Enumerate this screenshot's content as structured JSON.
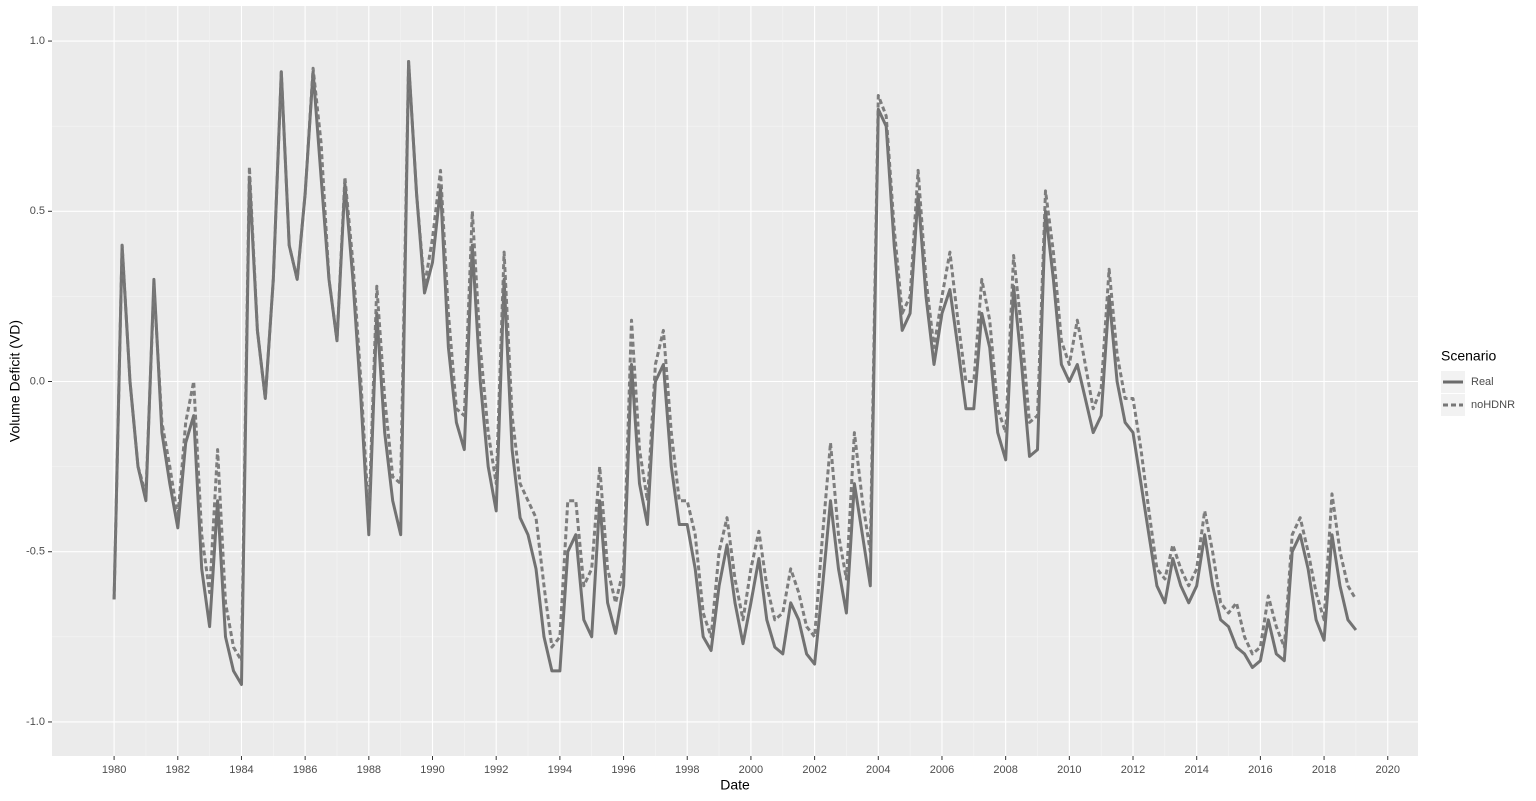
{
  "chart_data": {
    "type": "line",
    "x_label": "Date",
    "y_label": "Volume Deficit (VD)",
    "legend_title": "Scenario",
    "x": [
      1980,
      1980.25,
      1980.5,
      1980.75,
      1981,
      1981.25,
      1981.5,
      1981.75,
      1982,
      1982.25,
      1982.5,
      1982.75,
      1983,
      1983.25,
      1983.5,
      1983.75,
      1984,
      1984.25,
      1984.5,
      1984.75,
      1985,
      1985.25,
      1985.5,
      1985.75,
      1986,
      1986.25,
      1986.5,
      1986.75,
      1987,
      1987.25,
      1987.5,
      1987.75,
      1988,
      1988.25,
      1988.5,
      1988.75,
      1989,
      1989.25,
      1989.5,
      1989.75,
      1990,
      1990.25,
      1990.5,
      1990.75,
      1991,
      1991.25,
      1991.5,
      1991.75,
      1992,
      1992.25,
      1992.5,
      1992.75,
      1993,
      1993.25,
      1993.5,
      1993.75,
      1994,
      1994.25,
      1994.5,
      1994.75,
      1995,
      1995.25,
      1995.5,
      1995.75,
      1996,
      1996.25,
      1996.5,
      1996.75,
      1997,
      1997.25,
      1997.5,
      1997.75,
      1998,
      1998.25,
      1998.5,
      1998.75,
      1999,
      1999.25,
      1999.5,
      1999.75,
      2000,
      2000.25,
      2000.5,
      2000.75,
      2001,
      2001.25,
      2001.5,
      2001.75,
      2002,
      2002.25,
      2002.5,
      2002.75,
      2003,
      2003.25,
      2003.5,
      2003.75,
      2004,
      2004.25,
      2004.5,
      2004.75,
      2005,
      2005.25,
      2005.5,
      2005.75,
      2006,
      2006.25,
      2006.5,
      2006.75,
      2007,
      2007.25,
      2007.5,
      2007.75,
      2008,
      2008.25,
      2008.5,
      2008.75,
      2009,
      2009.25,
      2009.5,
      2009.75,
      2010,
      2010.25,
      2010.5,
      2010.75,
      2011,
      2011.25,
      2011.5,
      2011.75,
      2012,
      2012.25,
      2012.5,
      2012.75,
      2013,
      2013.25,
      2013.5,
      2013.75,
      2014,
      2014.25,
      2014.5,
      2014.75,
      2015,
      2015.25,
      2015.5,
      2015.75,
      2016,
      2016.25,
      2016.5,
      2016.75,
      2017,
      2017.25,
      2017.5,
      2017.75,
      2018,
      2018.25,
      2018.5,
      2018.75,
      2019
    ],
    "series": [
      {
        "name": "Real",
        "color": "#6b6b6b",
        "linetype": "solid",
        "values": [
          -0.64,
          0.4,
          0.0,
          -0.25,
          -0.35,
          0.3,
          -0.15,
          -0.3,
          -0.43,
          -0.18,
          -0.1,
          -0.55,
          -0.72,
          -0.35,
          -0.75,
          -0.85,
          -0.89,
          0.6,
          0.15,
          -0.05,
          0.3,
          0.91,
          0.4,
          0.3,
          0.55,
          0.91,
          0.6,
          0.3,
          0.12,
          0.58,
          0.3,
          -0.05,
          -0.45,
          0.2,
          -0.15,
          -0.35,
          -0.45,
          0.94,
          0.55,
          0.26,
          0.35,
          0.57,
          0.1,
          -0.12,
          -0.2,
          0.4,
          0.0,
          -0.25,
          -0.38,
          0.3,
          -0.2,
          -0.4,
          -0.45,
          -0.55,
          -0.75,
          -0.85,
          -0.85,
          -0.5,
          -0.45,
          -0.7,
          -0.75,
          -0.35,
          -0.65,
          -0.74,
          -0.6,
          0.05,
          -0.3,
          -0.42,
          0.0,
          0.05,
          -0.25,
          -0.42,
          -0.42,
          -0.55,
          -0.75,
          -0.79,
          -0.6,
          -0.48,
          -0.65,
          -0.77,
          -0.65,
          -0.52,
          -0.7,
          -0.78,
          -0.8,
          -0.65,
          -0.7,
          -0.8,
          -0.83,
          -0.6,
          -0.35,
          -0.55,
          -0.68,
          -0.3,
          -0.45,
          -0.6,
          0.8,
          0.75,
          0.4,
          0.15,
          0.2,
          0.55,
          0.25,
          0.05,
          0.2,
          0.27,
          0.1,
          -0.08,
          -0.08,
          0.2,
          0.1,
          -0.15,
          -0.23,
          0.28,
          0.05,
          -0.22,
          -0.2,
          0.5,
          0.3,
          0.05,
          0.0,
          0.05,
          -0.05,
          -0.15,
          -0.1,
          0.25,
          0.0,
          -0.12,
          -0.15,
          -0.3,
          -0.45,
          -0.6,
          -0.65,
          -0.52,
          -0.6,
          -0.65,
          -0.6,
          -0.45,
          -0.6,
          -0.7,
          -0.72,
          -0.78,
          -0.8,
          -0.84,
          -0.82,
          -0.7,
          -0.8,
          -0.82,
          -0.5,
          -0.45,
          -0.55,
          -0.7,
          -0.76,
          -0.45,
          -0.6,
          -0.7,
          -0.73
        ]
      },
      {
        "name": "noHDNR",
        "color": "#777777",
        "linetype": "dashed",
        "values": [
          -0.64,
          0.4,
          0.0,
          -0.25,
          -0.33,
          0.28,
          -0.12,
          -0.25,
          -0.4,
          -0.12,
          0.0,
          -0.45,
          -0.62,
          -0.2,
          -0.65,
          -0.78,
          -0.82,
          0.63,
          0.15,
          -0.05,
          0.3,
          0.91,
          0.4,
          0.3,
          0.55,
          0.92,
          0.7,
          0.3,
          0.12,
          0.6,
          0.35,
          0.0,
          -0.4,
          0.28,
          -0.05,
          -0.28,
          -0.3,
          0.94,
          0.55,
          0.28,
          0.42,
          0.62,
          0.2,
          -0.08,
          -0.1,
          0.5,
          0.1,
          -0.15,
          -0.3,
          0.38,
          -0.1,
          -0.3,
          -0.35,
          -0.4,
          -0.6,
          -0.78,
          -0.75,
          -0.35,
          -0.35,
          -0.6,
          -0.55,
          -0.25,
          -0.55,
          -0.65,
          -0.55,
          0.18,
          -0.2,
          -0.35,
          0.05,
          0.15,
          -0.15,
          -0.35,
          -0.35,
          -0.45,
          -0.68,
          -0.75,
          -0.5,
          -0.4,
          -0.58,
          -0.7,
          -0.55,
          -0.44,
          -0.6,
          -0.7,
          -0.68,
          -0.55,
          -0.62,
          -0.72,
          -0.75,
          -0.45,
          -0.18,
          -0.45,
          -0.58,
          -0.15,
          -0.35,
          -0.5,
          0.84,
          0.78,
          0.45,
          0.2,
          0.25,
          0.62,
          0.3,
          0.1,
          0.25,
          0.38,
          0.18,
          0.0,
          0.0,
          0.3,
          0.18,
          -0.08,
          -0.15,
          0.37,
          0.15,
          -0.12,
          -0.1,
          0.56,
          0.38,
          0.12,
          0.05,
          0.18,
          0.05,
          -0.08,
          -0.02,
          0.33,
          0.08,
          -0.05,
          -0.05,
          -0.2,
          -0.38,
          -0.55,
          -0.58,
          -0.48,
          -0.55,
          -0.6,
          -0.55,
          -0.38,
          -0.5,
          -0.65,
          -0.68,
          -0.65,
          -0.75,
          -0.8,
          -0.78,
          -0.63,
          -0.72,
          -0.78,
          -0.45,
          -0.4,
          -0.5,
          -0.62,
          -0.7,
          -0.33,
          -0.5,
          -0.6,
          -0.64
        ]
      }
    ],
    "xlim": [
      1978.05,
      2020.95
    ],
    "xticks": [
      1980,
      1982,
      1984,
      1986,
      1988,
      1990,
      1992,
      1994,
      1996,
      1998,
      2000,
      2002,
      2004,
      2006,
      2008,
      2010,
      2012,
      2014,
      2016,
      2018,
      2020
    ],
    "ylim": [
      -1.1,
      1.103
    ],
    "yticks": [
      {
        "value": -1,
        "label": "-1.0"
      },
      -0.5,
      {
        "value": 0,
        "label": "0.0"
      },
      0.5,
      {
        "value": 1,
        "label": "1.0"
      }
    ],
    "grid": true
  }
}
